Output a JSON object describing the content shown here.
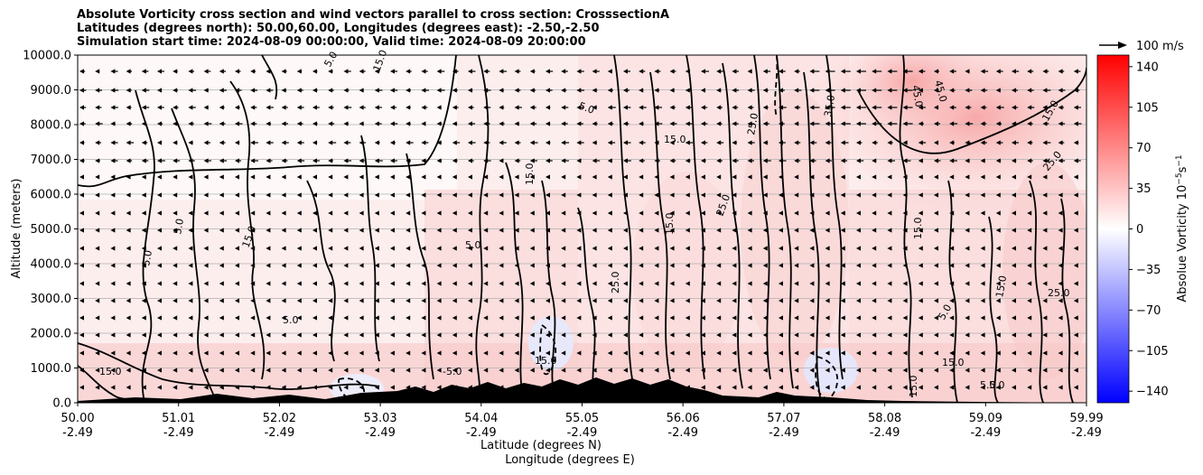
{
  "title_lines": [
    "Absolute Vorticity cross section and wind vectors parallel to cross section: CrosssectionA",
    "Latitudes (degrees north): 50.00,60.00, Longitudes (degrees east): -2.50,-2.50",
    "Simulation start time: 2024-08-09 00:00:00, Valid time: 2024-08-09 20:00:00"
  ],
  "quiver_key_label": "100 m/s",
  "chart_data": {
    "type": "heatmap",
    "subtype": "cross-section contour with wind vectors",
    "ylabel": "Altitude (meters)",
    "xlabel_lines": [
      "Latitude (degrees N)",
      "Longitude (degrees E)"
    ],
    "ylim": [
      0,
      10000
    ],
    "y_ticks": [
      0,
      1000,
      2000,
      3000,
      4000,
      5000,
      6000,
      7000,
      8000,
      9000,
      10000
    ],
    "y_tick_labels": [
      "0.0",
      "1000.0",
      "2000.0",
      "3000.0",
      "4000.0",
      "5000.0",
      "6000.0",
      "7000.0",
      "8000.0",
      "9000.0",
      "10000.0"
    ],
    "x_ticks_lat": [
      "50.00",
      "51.01",
      "52.02",
      "53.03",
      "54.04",
      "55.05",
      "56.06",
      "57.07",
      "58.08",
      "59.09",
      "59.99"
    ],
    "x_ticks_lon": [
      "-2.49",
      "-2.49",
      "-2.49",
      "-2.49",
      "-2.49",
      "-2.49",
      "-2.49",
      "-2.49",
      "-2.49",
      "-2.49",
      "-2.49"
    ],
    "grid": "horizontal",
    "colorbar": {
      "label": "Absolue Vorticity 10",
      "label_sup1": "−5",
      "label_mid": "s",
      "label_sup2": "−1",
      "range": [
        -150,
        150
      ],
      "ticks": [
        140,
        105,
        70,
        35,
        0,
        -35,
        -70,
        -105,
        -140
      ],
      "tick_labels": [
        "140",
        "105",
        "70",
        "35",
        "0",
        "−35",
        "−70",
        "−105",
        "−140"
      ],
      "colormap": "bwr"
    },
    "contour_labels": [
      "5.0",
      "15.0",
      "25.0",
      "35.0",
      "45.0",
      "-5.0"
    ],
    "wind_direction": "southward (towards lower latitude) aloft"
  }
}
